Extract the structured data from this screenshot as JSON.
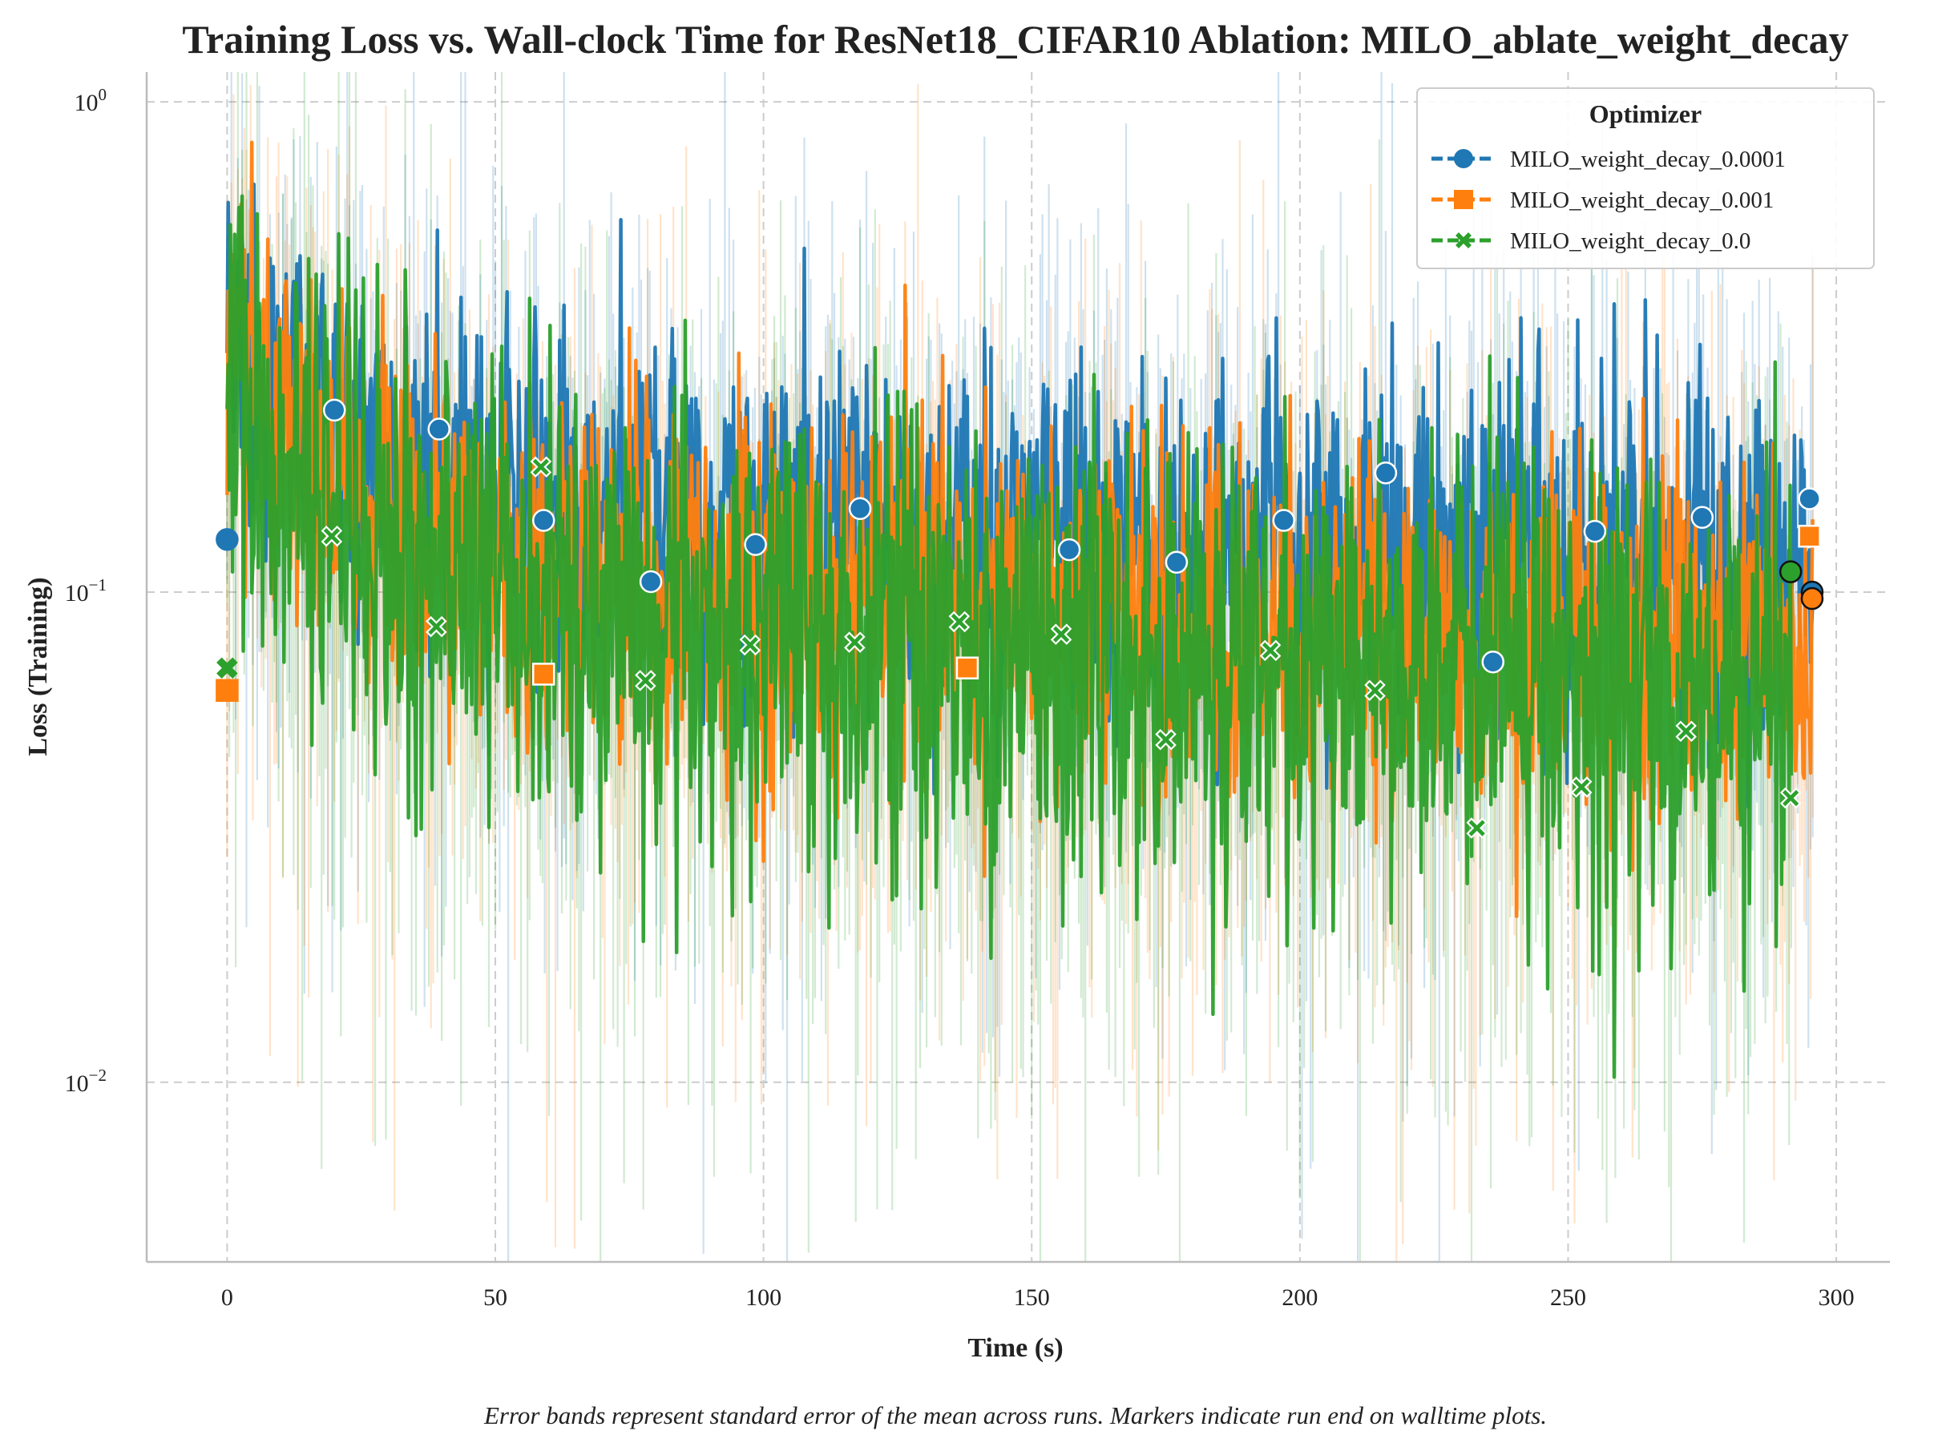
{
  "chart_data": {
    "type": "line",
    "title": "Training Loss vs. Wall-clock Time for ResNet18_CIFAR10 Ablation: MILO_ablate_weight_decay",
    "xlabel": "Time (s)",
    "ylabel": "Loss (Training)",
    "yscale": "log",
    "xlim": [
      -15,
      310
    ],
    "ylim": [
      0.0043,
      1.15
    ],
    "grid": true,
    "x_ticks": [
      0,
      50,
      100,
      150,
      200,
      250,
      300
    ],
    "y_ticks": [
      {
        "value": 1.0,
        "base": "10",
        "exp": "0"
      },
      {
        "value": 0.1,
        "base": "10",
        "exp": "−1"
      },
      {
        "value": 0.01,
        "base": "10",
        "exp": "−2"
      }
    ],
    "legend": {
      "title": "Optimizer",
      "position": "top-right"
    },
    "caption": "Error bands represent standard error of the mean across runs. Markers indicate run end on walltime plots.",
    "series": [
      {
        "name": "MILO_weight_decay_0.0001",
        "color": "#1f77b4",
        "marker": "circle",
        "markers": [
          [
            0,
            0.128
          ],
          [
            20,
            0.235
          ],
          [
            39.5,
            0.215
          ],
          [
            59,
            0.14
          ],
          [
            79,
            0.105
          ],
          [
            98.5,
            0.125
          ],
          [
            118,
            0.148
          ],
          [
            157,
            0.122
          ],
          [
            177,
            0.115
          ],
          [
            197,
            0.14
          ],
          [
            216,
            0.175
          ],
          [
            236,
            0.072
          ],
          [
            255,
            0.133
          ],
          [
            275,
            0.142
          ],
          [
            295,
            0.155
          ]
        ],
        "end_marker": [
          295.5,
          0.1
        ],
        "trend": [
          [
            0,
            0.35
          ],
          [
            10,
            0.24
          ],
          [
            50,
            0.155
          ],
          [
            100,
            0.135
          ],
          [
            150,
            0.125
          ],
          [
            200,
            0.12
          ],
          [
            250,
            0.115
          ],
          [
            295,
            0.11
          ]
        ]
      },
      {
        "name": "MILO_weight_decay_0.001",
        "color": "#ff7f0e",
        "marker": "square",
        "markers": [
          [
            0,
            0.063
          ],
          [
            59,
            0.068
          ],
          [
            138,
            0.07
          ],
          [
            295,
            0.13
          ]
        ],
        "end_marker": [
          295.5,
          0.097
        ],
        "trend": [
          [
            0,
            0.3
          ],
          [
            10,
            0.2
          ],
          [
            50,
            0.12
          ],
          [
            100,
            0.1
          ],
          [
            150,
            0.09
          ],
          [
            200,
            0.085
          ],
          [
            250,
            0.08
          ],
          [
            295,
            0.078
          ]
        ]
      },
      {
        "name": "MILO_weight_decay_0.0",
        "color": "#2ca02c",
        "marker": "x",
        "markers": [
          [
            0,
            0.07
          ],
          [
            19.5,
            0.13
          ],
          [
            39,
            0.085
          ],
          [
            58.5,
            0.18
          ],
          [
            78,
            0.066
          ],
          [
            97.5,
            0.078
          ],
          [
            117,
            0.079
          ],
          [
            136.5,
            0.087
          ],
          [
            155.5,
            0.082
          ],
          [
            175,
            0.05
          ],
          [
            194.5,
            0.076
          ],
          [
            214,
            0.063
          ],
          [
            233,
            0.033
          ],
          [
            252.5,
            0.04
          ],
          [
            272,
            0.052
          ],
          [
            291.5,
            0.038
          ]
        ],
        "end_marker": [
          291.5,
          0.11
        ],
        "trend": [
          [
            0,
            0.28
          ],
          [
            10,
            0.17
          ],
          [
            50,
            0.1
          ],
          [
            100,
            0.08
          ],
          [
            150,
            0.072
          ],
          [
            200,
            0.068
          ],
          [
            250,
            0.064
          ],
          [
            291,
            0.062
          ]
        ]
      }
    ]
  }
}
